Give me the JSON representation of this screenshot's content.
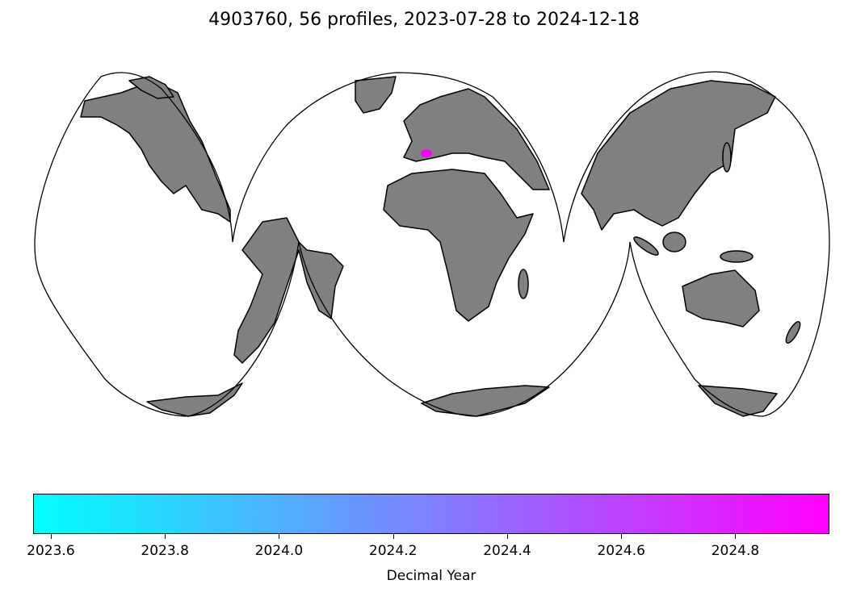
{
  "title": "4903760, 56 profiles, 2023-07-28 to 2024-12-18",
  "map": {
    "projection": "Interrupted Goode Homolosine",
    "land_color": "#808080",
    "coast_color": "#000000",
    "ocean_color": "#ffffff",
    "track": {
      "region": "Western Mediterranean Sea",
      "profiles": 56,
      "color_start": "#ff00ff"
    }
  },
  "colorbar": {
    "label": "Decimal Year",
    "cmap": [
      "#00ffff",
      "#ff00ff"
    ],
    "range": [
      2023.569,
      2024.965
    ],
    "ticks": [
      {
        "value": 2023.6,
        "label": "2023.6"
      },
      {
        "value": 2023.8,
        "label": "2023.8"
      },
      {
        "value": 2024.0,
        "label": "2024.0"
      },
      {
        "value": 2024.2,
        "label": "2024.2"
      },
      {
        "value": 2024.4,
        "label": "2024.4"
      },
      {
        "value": 2024.6,
        "label": "2024.6"
      },
      {
        "value": 2024.8,
        "label": "2024.8"
      }
    ]
  }
}
